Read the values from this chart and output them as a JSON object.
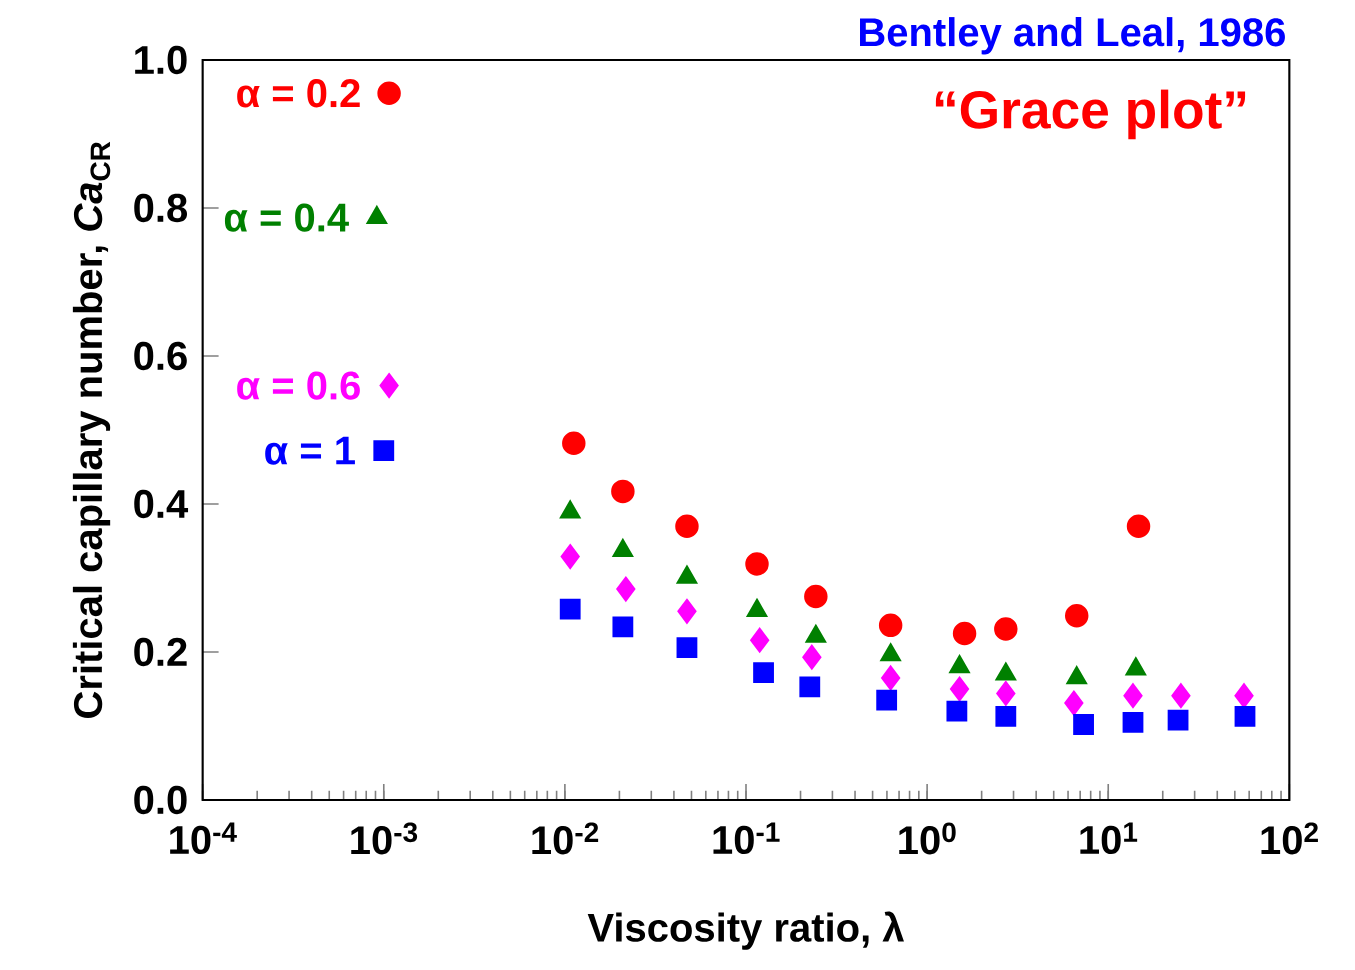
{
  "chart_data": {
    "type": "scatter",
    "xlabel": "Viscosity ratio, λ",
    "ylabel": "Critical capillary number, *Ca*$_{CR}$",
    "annotations": [
      "Bentley and Leal, 1986",
      "“Grace plot”"
    ],
    "log": "x",
    "legend": false,
    "grid": false,
    "xlim": [
      0.0001,
      100
    ],
    "ylim": [
      0,
      1
    ],
    "xticks": [
      {
        "value": 0.0001,
        "label": "10$^{-4}$"
      },
      {
        "value": 0.001,
        "label": "10$^{-3}$"
      },
      {
        "value": 0.01,
        "label": "10$^{-2}$"
      },
      {
        "value": 0.1,
        "label": "10$^{-1}$"
      },
      {
        "value": 1,
        "label": "10$^{0}$"
      },
      {
        "value": 10,
        "label": "10$^{1}$"
      },
      {
        "value": 100,
        "label": "10$^{2}$"
      }
    ],
    "yticks": [
      {
        "value": 0,
        "label": "0.0"
      },
      {
        "value": 0.2,
        "label": "0.2"
      },
      {
        "value": 0.4,
        "label": "0.4"
      },
      {
        "value": 0.6,
        "label": "0.6"
      },
      {
        "value": 0.8,
        "label": "0.8"
      },
      {
        "value": 1,
        "label": "1.0"
      }
    ],
    "series": [
      {
        "name": "α = 0.2",
        "color": "#ff0000",
        "marker": "circle",
        "x": [
          0.00107,
          0.0112,
          0.0209,
          0.0472,
          0.115,
          0.243,
          0.629,
          1.61,
          2.72,
          6.7,
          14.7
        ],
        "values": [
          0.955,
          0.482,
          0.417,
          0.37,
          0.319,
          0.275,
          0.236,
          0.225,
          0.231,
          0.249,
          0.37
        ]
      },
      {
        "name": "α = 0.4",
        "color": "#008000",
        "marker": "triangle",
        "x": [
          0.000916,
          0.0107,
          0.0209,
          0.0472,
          0.115,
          0.243,
          0.629,
          1.51,
          2.72,
          6.7,
          14.2
        ],
        "values": [
          0.787,
          0.389,
          0.337,
          0.301,
          0.256,
          0.221,
          0.196,
          0.18,
          0.17,
          0.165,
          0.177
        ]
      },
      {
        "name": "α = 0.6",
        "color": "#ff00ff",
        "marker": "diamond",
        "x": [
          0.00107,
          0.0107,
          0.0217,
          0.0472,
          0.119,
          0.231,
          0.629,
          1.51,
          2.72,
          6.46,
          13.7,
          25.2,
          56.2
        ],
        "values": [
          0.56,
          0.329,
          0.285,
          0.255,
          0.216,
          0.193,
          0.165,
          0.15,
          0.144,
          0.131,
          0.141,
          0.141,
          0.141
        ]
      },
      {
        "name": "α = 1",
        "color": "#0000ff",
        "marker": "square",
        "x": [
          0.001,
          0.0107,
          0.0209,
          0.0472,
          0.125,
          0.225,
          0.598,
          1.46,
          2.72,
          7.31,
          13.7,
          24.3,
          56.9
        ],
        "values": [
          0.472,
          0.258,
          0.234,
          0.206,
          0.172,
          0.153,
          0.135,
          0.12,
          0.113,
          0.102,
          0.105,
          0.108,
          0.113
        ]
      }
    ]
  }
}
